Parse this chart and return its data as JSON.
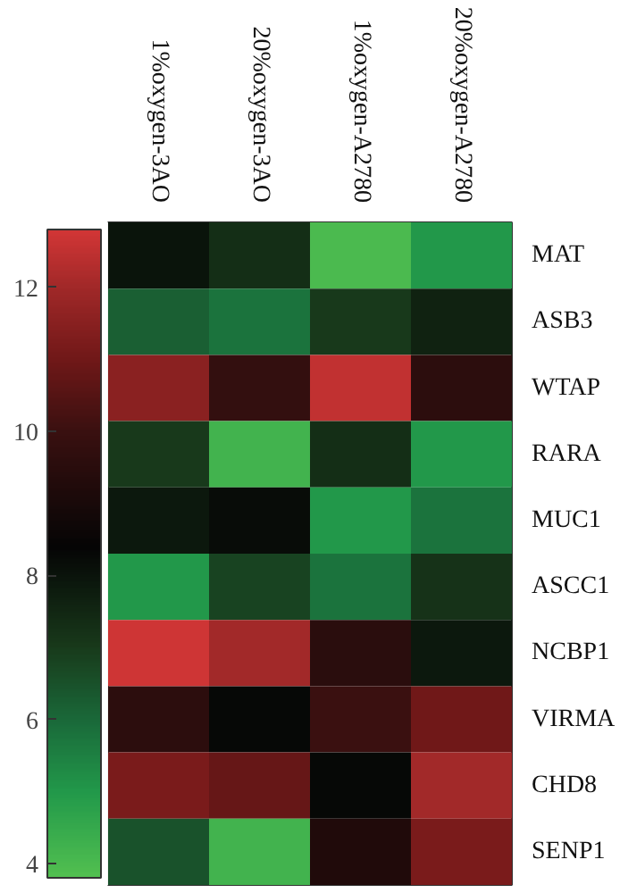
{
  "chart_data": {
    "type": "heatmap",
    "categories": [
      "1%oxygen-3AO",
      "20%oxygen-3AO",
      "1%oxygen-A2780",
      "20%oxygen-A2780"
    ],
    "y_categories": [
      "MAT",
      "ASB3",
      "WTAP",
      "RARA",
      "MUC1",
      "ASCC1",
      "NCBP1",
      "VIRMA",
      "CHD8",
      "SENP1"
    ],
    "cells": [
      [
        8.0,
        7.3,
        4.0,
        5.0
      ],
      [
        6.2,
        5.8,
        7.0,
        7.6
      ],
      [
        11.5,
        9.8,
        12.5,
        9.6
      ],
      [
        7.0,
        4.2,
        7.3,
        5.0
      ],
      [
        7.9,
        8.2,
        5.0,
        5.8
      ],
      [
        5.0,
        6.8,
        5.8,
        7.2
      ],
      [
        12.7,
        12.0,
        9.5,
        7.9
      ],
      [
        9.6,
        8.3,
        10.0,
        11.0
      ],
      [
        11.2,
        10.8,
        8.3,
        12.0
      ],
      [
        6.5,
        4.2,
        9.2,
        11.2
      ]
    ],
    "clim": [
      3.8,
      12.8
    ],
    "cticks": [
      4,
      6,
      8,
      10,
      12
    ]
  }
}
